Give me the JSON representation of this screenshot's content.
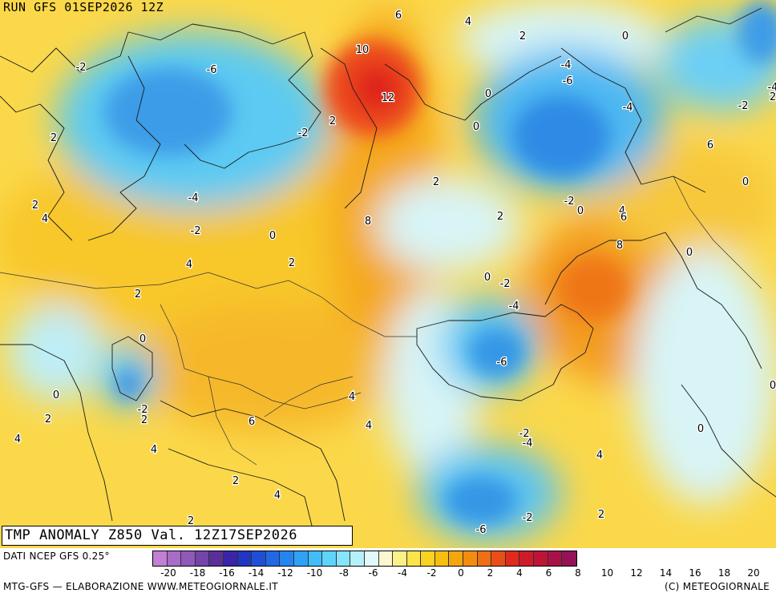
{
  "run_label": "RUN GFS 01SEP2026 12Z",
  "title": "TMP ANOMALY Z850 Val. 12Z17SEP2026",
  "source_label": "DATI NCEP GFS 0.25°",
  "credit_left": "MTG-GFS — ELABORAZIONE WWW.METEOGIORNALE.IT",
  "credit_right": "(C) METEOGIORNALE",
  "legend": {
    "colors": [
      "#c27fd6",
      "#a86cc9",
      "#8f58b9",
      "#7444a8",
      "#5a2f9a",
      "#3a25a6",
      "#2236c2",
      "#1f4fd6",
      "#2168e6",
      "#2584f0",
      "#30a2f5",
      "#43bdf8",
      "#5ed4fa",
      "#86e4fb",
      "#b5f0fb",
      "#e3f8f9",
      "#fbf7d0",
      "#fcf08a",
      "#fbe54b",
      "#f9d321",
      "#f7be12",
      "#f5a60e",
      "#f38d10",
      "#ef6f14",
      "#ea4e18",
      "#e02a1c",
      "#cf1a2a",
      "#bd1438",
      "#a81246",
      "#941255"
    ],
    "tick_labels": [
      "-20",
      "-18",
      "-16",
      "-14",
      "-12",
      "-10",
      "-8",
      "-6",
      "-4",
      "-2",
      "0",
      "2",
      "4",
      "6",
      "8",
      "10",
      "12",
      "14",
      "16",
      "18",
      "20"
    ]
  },
  "map_labels": [
    {
      "text": "6"
    },
    {
      "text": "4"
    },
    {
      "text": "2"
    },
    {
      "text": "-2"
    },
    {
      "text": "0"
    },
    {
      "text": "-6"
    },
    {
      "text": "10"
    },
    {
      "text": "12"
    },
    {
      "text": "-4"
    },
    {
      "text": "-6"
    },
    {
      "text": "0"
    },
    {
      "text": "-4"
    },
    {
      "text": "-2"
    },
    {
      "text": "0"
    },
    {
      "text": "2"
    },
    {
      "text": "-2"
    },
    {
      "text": "2"
    },
    {
      "text": "6"
    },
    {
      "text": "4"
    },
    {
      "text": "-4"
    },
    {
      "text": "-2"
    },
    {
      "text": "0"
    },
    {
      "text": "2"
    },
    {
      "text": "8"
    },
    {
      "text": "2"
    },
    {
      "text": "2"
    },
    {
      "text": "0"
    },
    {
      "text": "-2"
    },
    {
      "text": "0"
    },
    {
      "text": "4"
    },
    {
      "text": "6"
    },
    {
      "text": "8"
    },
    {
      "text": "0"
    },
    {
      "text": "4"
    },
    {
      "text": "2"
    },
    {
      "text": "0"
    },
    {
      "text": "-2"
    },
    {
      "text": "-4"
    },
    {
      "text": "2"
    },
    {
      "text": "0"
    },
    {
      "text": "-6"
    },
    {
      "text": "0"
    },
    {
      "text": "2"
    },
    {
      "text": "-2"
    },
    {
      "text": "4"
    },
    {
      "text": "2"
    },
    {
      "text": "4"
    },
    {
      "text": "6"
    },
    {
      "text": "4"
    },
    {
      "text": "4"
    },
    {
      "text": "-2"
    },
    {
      "text": "-4"
    },
    {
      "text": "0"
    },
    {
      "text": "4"
    },
    {
      "text": "2"
    },
    {
      "text": "4"
    },
    {
      "text": "2"
    },
    {
      "text": "-2"
    },
    {
      "text": "2"
    },
    {
      "text": "-6"
    },
    {
      "text": "2"
    },
    {
      "text": "0"
    },
    {
      "text": "-4"
    }
  ]
}
